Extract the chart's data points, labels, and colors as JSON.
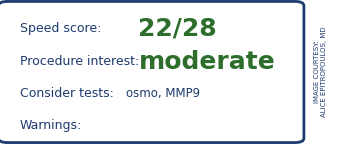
{
  "background_color": "#ffffff",
  "border_color": "#1e3a6e",
  "label_color": "#1e3a6e",
  "value_color": "#2d6e2d",
  "small_text_color": "#1e3a6e",
  "line1_label": "Speed score:",
  "line1_value": "22/28",
  "line2_label": "Procedure interest:",
  "line2_value": "moderate",
  "line3_prefix": "Consider tests: ",
  "line3_value": "osmo, MMP9",
  "line4_label": "Warnings:",
  "side_text": "IMAGE COURTESY:\nALICE EPITROPOULOS, MD",
  "label_fontsize": 9.0,
  "value_fontsize_large": 18,
  "value_fontsize_small": 8.5,
  "side_fontsize": 5.0,
  "fig_width": 3.4,
  "fig_height": 1.44,
  "dpi": 100
}
